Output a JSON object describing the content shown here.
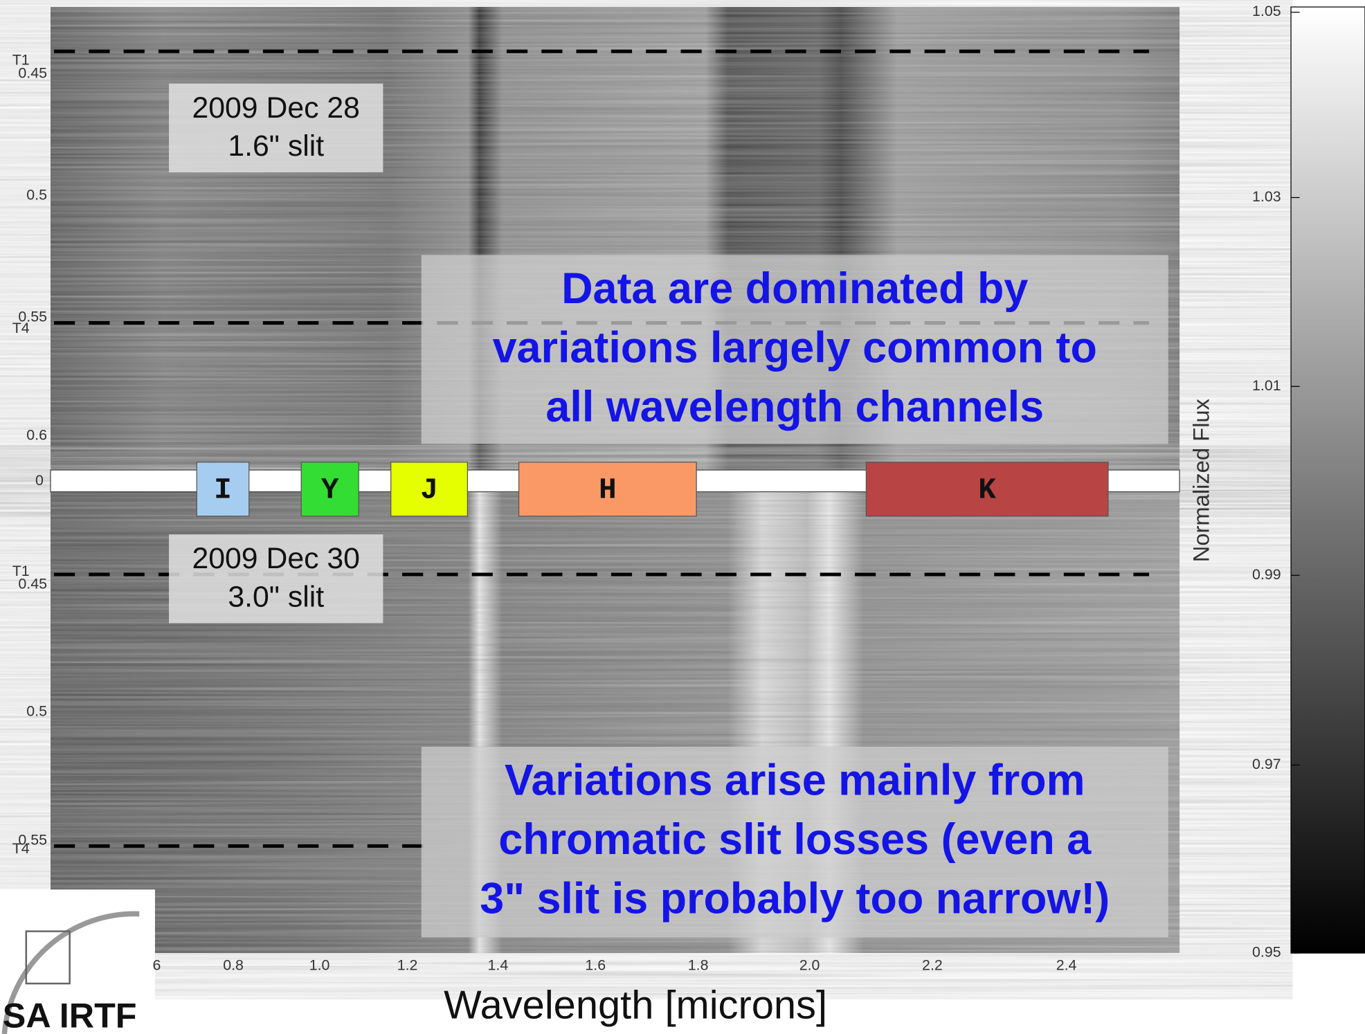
{
  "top_panel": {
    "date": "2009 Dec 28",
    "slit": "1.6\" slit",
    "yticks": [
      "0.45",
      "0.5",
      "0.55",
      "0.6"
    ],
    "markers": [
      "T1",
      "T4"
    ]
  },
  "bottom_panel": {
    "date": "2009 Dec 30",
    "slit": "3.0\" slit",
    "yticks": [
      "0.45",
      "0.5",
      "0.55"
    ],
    "markers": [
      "T1",
      "T4"
    ]
  },
  "strip_label": "0",
  "bands": [
    "I",
    "Y",
    "J",
    "H",
    "K"
  ],
  "xticks": [
    "6",
    "0.8",
    "1.0",
    "1.2",
    "1.4",
    "1.6",
    "1.8",
    "2.0",
    "2.2",
    "2.4"
  ],
  "xlabel": "Wavelength [microns]",
  "colorbar": {
    "label": "Normalized Flux",
    "ticks": [
      "1.05",
      "1.03",
      "1.01",
      "0.99",
      "0.97",
      "0.95"
    ]
  },
  "annotations": [
    [
      "Data are dominated by",
      "variations largely common to",
      "all wavelength channels"
    ],
    [
      "Variations arise mainly from",
      "chromatic slit losses (even a",
      "3\" slit is probably too narrow!)"
    ]
  ],
  "logo": "SA IRTF"
}
